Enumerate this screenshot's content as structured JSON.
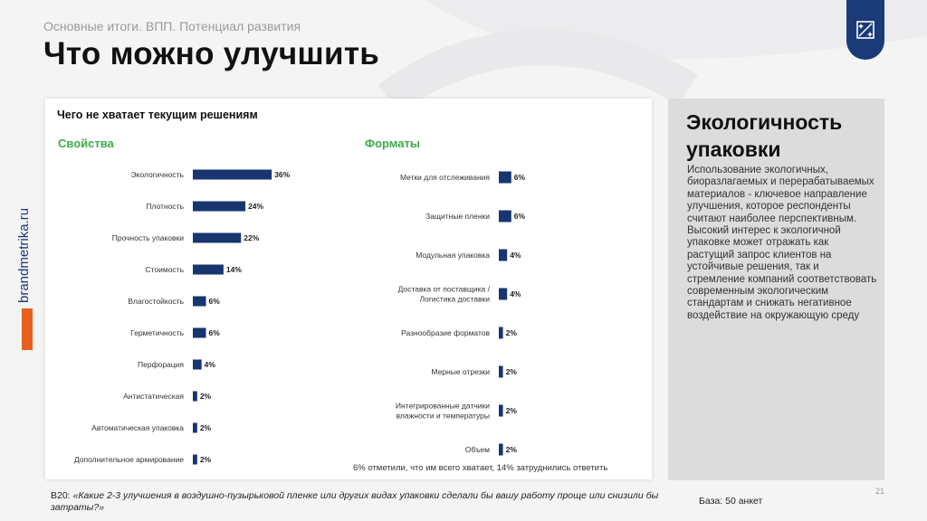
{
  "header": {
    "subtitle": "Основные итоги. ВПП. Потенциал развития",
    "title": "Что можно улучшить"
  },
  "brand": {
    "side_text": "brandmetrika.ru"
  },
  "chart_title": "Чего не хватает текущим решениям",
  "chart_data": [
    {
      "type": "bar",
      "orientation": "horizontal",
      "title": "Свойства",
      "categories": [
        "Экологичность",
        "Плотность",
        "Прочность упаковки",
        "Стоимость",
        "Влагостойкость",
        "Герметичность",
        "Перфорация",
        "Антистатическая",
        "Автоматическая упаковка",
        "Дополнительное армирование"
      ],
      "values": [
        36,
        24,
        22,
        14,
        6,
        6,
        4,
        2,
        2,
        2
      ],
      "value_labels": [
        "36%",
        "24%",
        "22%",
        "14%",
        "6%",
        "6%",
        "4%",
        "2%",
        "2%",
        "2%"
      ],
      "unit": "%",
      "color": "#17366f"
    },
    {
      "type": "bar",
      "orientation": "horizontal",
      "title": "Форматы",
      "categories": [
        "Метки для отслеживания",
        "Защитные пленки",
        "Модульная упаковка",
        "Доставка от поставщика / Логистика доставки",
        "Разнообразие форматов",
        "Мерные отрезки",
        "Интегрированные датчики влажности и температуры",
        "Объем"
      ],
      "values": [
        6,
        6,
        4,
        4,
        2,
        2,
        2,
        2
      ],
      "value_labels": [
        "6%",
        "6%",
        "4%",
        "4%",
        "2%",
        "2%",
        "2%",
        "2%"
      ],
      "unit": "%",
      "color": "#17366f"
    }
  ],
  "chart_note": "6% отметили, что им всего хватает, 14% затруднились ответить",
  "insight": {
    "title": "Экологичность упаковки",
    "body": "Использование экологичных, биоразлагаемых и перерабатываемых материалов - ключевое направление улучшения, которое респонденты считают наиболее перспективным. Высокий интерес к экологичной упаковке может отражать как растущий запрос клиентов на устойчивые решения, так и стремление компаний соответствовать современным экологическим стандартам и снижать негативное воздействие на окружающую среду"
  },
  "page_number": "21",
  "question": {
    "code": "В20: ",
    "text": "«Какие 2-3 улучшения в воздушно-пузырьковой пленке или других видах упаковки сделали бы вашу работу проще или снизили бы затраты?»"
  },
  "base": "База: 50 анкет",
  "colors": {
    "accent_blue": "#17366f",
    "accent_green": "#3cab4a",
    "accent_orange": "#e8601c"
  }
}
